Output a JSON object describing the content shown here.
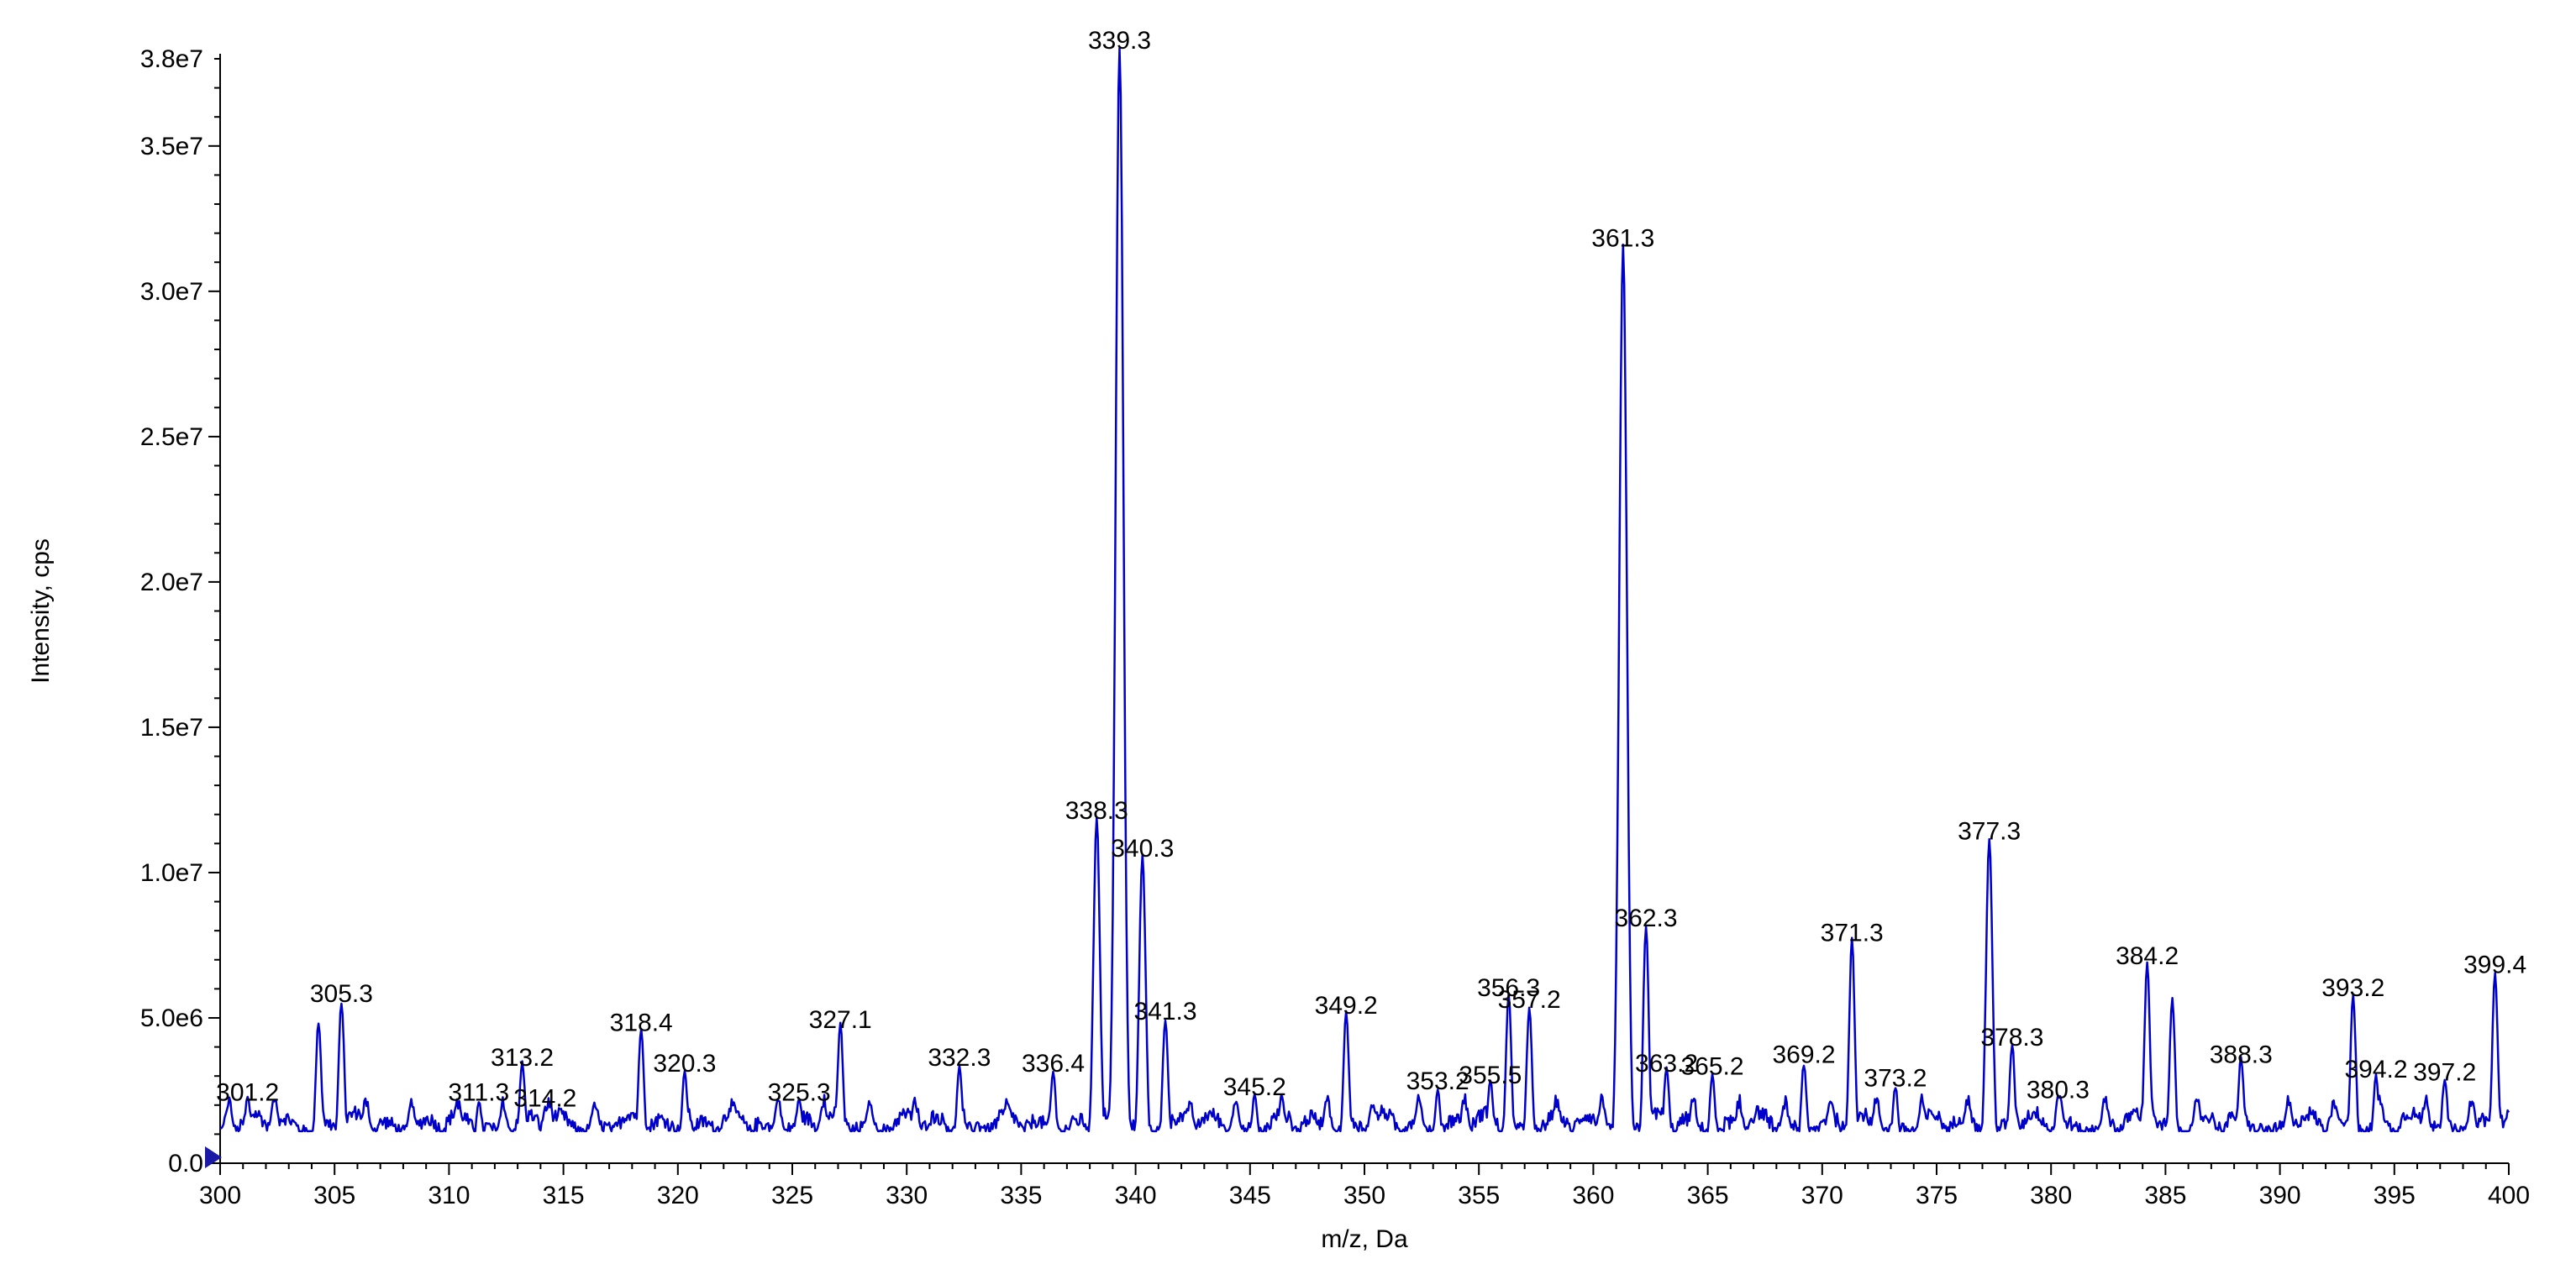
{
  "chart_data": {
    "type": "line",
    "title": "",
    "xlabel": "m/z, Da",
    "ylabel": "Intensity, cps",
    "xlim": [
      300,
      400
    ],
    "ylim": [
      0,
      38000000
    ],
    "grid": false,
    "legend": "none",
    "line_color": "#0000cc",
    "x_ticks": [
      {
        "value": 300,
        "label": "300"
      },
      {
        "value": 305,
        "label": "305"
      },
      {
        "value": 310,
        "label": "310"
      },
      {
        "value": 315,
        "label": "315"
      },
      {
        "value": 320,
        "label": "320"
      },
      {
        "value": 325,
        "label": "325"
      },
      {
        "value": 330,
        "label": "330"
      },
      {
        "value": 335,
        "label": "335"
      },
      {
        "value": 340,
        "label": "340"
      },
      {
        "value": 345,
        "label": "345"
      },
      {
        "value": 350,
        "label": "350"
      },
      {
        "value": 355,
        "label": "355"
      },
      {
        "value": 360,
        "label": "360"
      },
      {
        "value": 365,
        "label": "365"
      },
      {
        "value": 370,
        "label": "370"
      },
      {
        "value": 375,
        "label": "375"
      },
      {
        "value": 380,
        "label": "380"
      },
      {
        "value": 385,
        "label": "385"
      },
      {
        "value": 390,
        "label": "390"
      },
      {
        "value": 395,
        "label": "395"
      },
      {
        "value": 400,
        "label": "400"
      }
    ],
    "y_ticks": [
      {
        "value": 0,
        "label": "0.0"
      },
      {
        "value": 5000000,
        "label": "5.0e6"
      },
      {
        "value": 10000000,
        "label": "1.0e7"
      },
      {
        "value": 15000000,
        "label": "1.5e7"
      },
      {
        "value": 20000000,
        "label": "2.0e7"
      },
      {
        "value": 25000000,
        "label": "2.5e7"
      },
      {
        "value": 30000000,
        "label": "3.0e7"
      },
      {
        "value": 35000000,
        "label": "3.5e7"
      },
      {
        "value": 38000000,
        "label": "3.8e7"
      }
    ],
    "peaks": [
      {
        "mz": 301.2,
        "intensity": 1800000,
        "label": "301.2"
      },
      {
        "mz": 304.3,
        "intensity": 4500000,
        "label": ""
      },
      {
        "mz": 305.3,
        "intensity": 5200000,
        "label": "305.3"
      },
      {
        "mz": 311.3,
        "intensity": 1800000,
        "label": "311.3"
      },
      {
        "mz": 313.2,
        "intensity": 3000000,
        "label": "313.2"
      },
      {
        "mz": 314.2,
        "intensity": 1600000,
        "label": "314.2"
      },
      {
        "mz": 318.4,
        "intensity": 4200000,
        "label": "318.4"
      },
      {
        "mz": 320.3,
        "intensity": 2800000,
        "label": "320.3"
      },
      {
        "mz": 325.3,
        "intensity": 1800000,
        "label": "325.3"
      },
      {
        "mz": 327.1,
        "intensity": 4300000,
        "label": "327.1"
      },
      {
        "mz": 332.3,
        "intensity": 3000000,
        "label": "332.3"
      },
      {
        "mz": 336.4,
        "intensity": 2800000,
        "label": "336.4"
      },
      {
        "mz": 338.3,
        "intensity": 11500000,
        "label": "338.3"
      },
      {
        "mz": 339.3,
        "intensity": 38000000,
        "label": "339.3"
      },
      {
        "mz": 340.3,
        "intensity": 10200000,
        "label": "340.3"
      },
      {
        "mz": 341.3,
        "intensity": 4600000,
        "label": "341.3"
      },
      {
        "mz": 345.2,
        "intensity": 2000000,
        "label": "345.2"
      },
      {
        "mz": 349.2,
        "intensity": 4800000,
        "label": "349.2"
      },
      {
        "mz": 353.2,
        "intensity": 2200000,
        "label": "353.2"
      },
      {
        "mz": 355.5,
        "intensity": 2400000,
        "label": "355.5"
      },
      {
        "mz": 356.3,
        "intensity": 5400000,
        "label": "356.3"
      },
      {
        "mz": 357.2,
        "intensity": 5000000,
        "label": "357.2"
      },
      {
        "mz": 361.3,
        "intensity": 31200000,
        "label": "361.3"
      },
      {
        "mz": 362.3,
        "intensity": 7800000,
        "label": "362.3"
      },
      {
        "mz": 363.2,
        "intensity": 2800000,
        "label": "363.2"
      },
      {
        "mz": 365.2,
        "intensity": 2700000,
        "label": "365.2"
      },
      {
        "mz": 369.2,
        "intensity": 3100000,
        "label": "369.2"
      },
      {
        "mz": 371.3,
        "intensity": 7300000,
        "label": "371.3"
      },
      {
        "mz": 373.2,
        "intensity": 2300000,
        "label": "373.2"
      },
      {
        "mz": 377.3,
        "intensity": 10800000,
        "label": "377.3"
      },
      {
        "mz": 378.3,
        "intensity": 3700000,
        "label": "378.3"
      },
      {
        "mz": 380.3,
        "intensity": 1900000,
        "label": "380.3"
      },
      {
        "mz": 384.2,
        "intensity": 6500000,
        "label": "384.2"
      },
      {
        "mz": 385.3,
        "intensity": 5300000,
        "label": ""
      },
      {
        "mz": 388.3,
        "intensity": 3100000,
        "label": "388.3"
      },
      {
        "mz": 393.2,
        "intensity": 5400000,
        "label": "393.2"
      },
      {
        "mz": 394.2,
        "intensity": 2600000,
        "label": "394.2"
      },
      {
        "mz": 397.2,
        "intensity": 2500000,
        "label": "397.2"
      },
      {
        "mz": 399.4,
        "intensity": 6200000,
        "label": "399.4"
      }
    ]
  }
}
